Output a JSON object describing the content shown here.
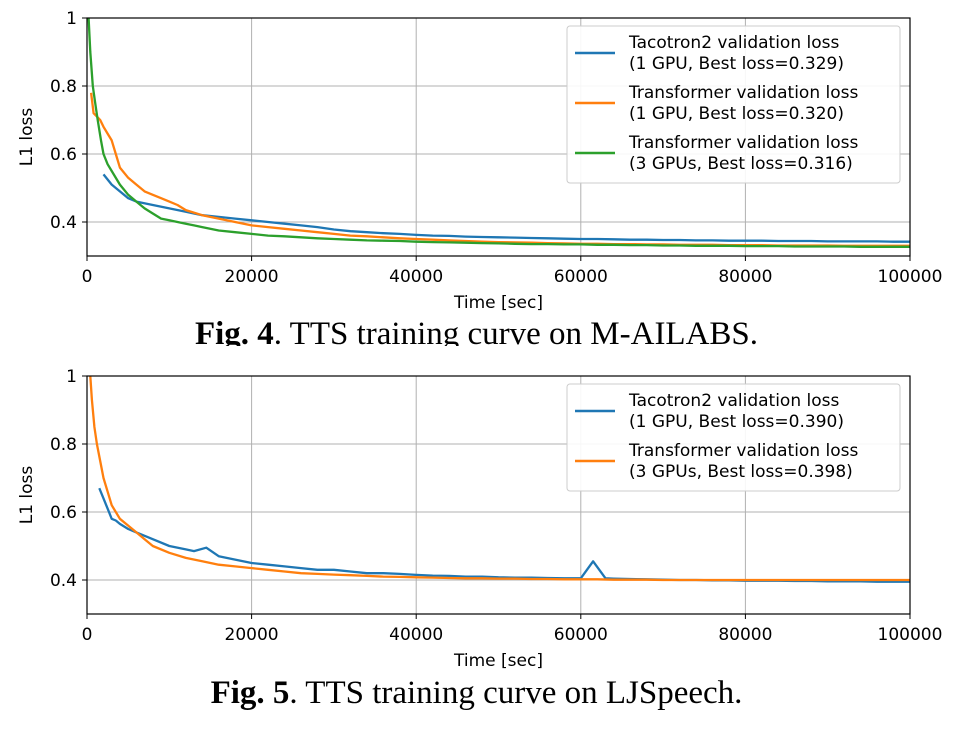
{
  "chart_data": [
    {
      "type": "line",
      "caption_label": "Fig. 4",
      "caption_text": ". TTS training curve on M-AILABS.",
      "xlabel": "Time [sec]",
      "ylabel": "L1 loss",
      "xlim": [
        0,
        100000
      ],
      "ylim": [
        0.3,
        1.0
      ],
      "xticks": [
        0,
        20000,
        40000,
        60000,
        80000,
        100000
      ],
      "yticks": [
        0.4,
        0.6,
        0.8,
        1.0
      ],
      "grid": true,
      "legend_position": "top-right",
      "series": [
        {
          "name": "Tacotron2 validation loss",
          "name_line2": "(1 GPU, Best loss=0.329)",
          "color": "#1f77b4",
          "x": [
            2000,
            3000,
            4000,
            5000,
            6000,
            8000,
            10000,
            12000,
            14000,
            16000,
            18000,
            20000,
            22000,
            24000,
            26000,
            28000,
            30000,
            32000,
            34000,
            36000,
            38000,
            40000,
            42000,
            44000,
            46000,
            48000,
            50000,
            52000,
            54000,
            56000,
            58000,
            60000,
            62000,
            64000,
            66000,
            68000,
            70000,
            72000,
            74000,
            76000,
            78000,
            80000,
            82000,
            84000,
            86000,
            88000,
            90000,
            92000,
            94000,
            96000,
            98000,
            100000
          ],
          "y": [
            0.54,
            0.51,
            0.49,
            0.47,
            0.46,
            0.45,
            0.44,
            0.43,
            0.42,
            0.415,
            0.41,
            0.405,
            0.4,
            0.395,
            0.39,
            0.385,
            0.378,
            0.373,
            0.37,
            0.367,
            0.365,
            0.362,
            0.36,
            0.359,
            0.357,
            0.356,
            0.355,
            0.354,
            0.353,
            0.352,
            0.351,
            0.35,
            0.35,
            0.349,
            0.348,
            0.348,
            0.347,
            0.347,
            0.346,
            0.346,
            0.345,
            0.345,
            0.345,
            0.344,
            0.344,
            0.344,
            0.343,
            0.343,
            0.343,
            0.343,
            0.342,
            0.342
          ]
        },
        {
          "name": "Transformer validation loss",
          "name_line2": "(1 GPU, Best loss=0.320)",
          "color": "#ff7f0e",
          "x": [
            500,
            800,
            1200,
            1600,
            2000,
            2500,
            3000,
            3500,
            4000,
            5000,
            6000,
            7000,
            8000,
            9000,
            10000,
            11000,
            12000,
            14000,
            16000,
            18000,
            20000,
            22000,
            24000,
            26000,
            28000,
            30000,
            32000,
            34000,
            36000,
            38000,
            40000,
            42000,
            44000,
            46000,
            48000,
            50000,
            52000,
            54000,
            56000,
            58000,
            60000,
            62000,
            64000,
            66000,
            68000,
            70000,
            72000,
            74000,
            76000,
            78000,
            80000,
            82000,
            84000,
            86000,
            88000,
            90000,
            92000,
            94000,
            96000,
            98000,
            100000
          ],
          "y": [
            0.78,
            0.72,
            0.71,
            0.7,
            0.68,
            0.66,
            0.64,
            0.6,
            0.56,
            0.53,
            0.51,
            0.49,
            0.48,
            0.47,
            0.46,
            0.45,
            0.435,
            0.42,
            0.41,
            0.4,
            0.39,
            0.385,
            0.38,
            0.375,
            0.37,
            0.365,
            0.36,
            0.358,
            0.355,
            0.352,
            0.35,
            0.348,
            0.346,
            0.344,
            0.342,
            0.341,
            0.34,
            0.339,
            0.338,
            0.337,
            0.336,
            0.336,
            0.335,
            0.335,
            0.334,
            0.334,
            0.333,
            0.333,
            0.333,
            0.332,
            0.332,
            0.332,
            0.331,
            0.331,
            0.331,
            0.331,
            0.33,
            0.33,
            0.33,
            0.33,
            0.33
          ]
        },
        {
          "name": "Transformer validation loss",
          "name_line2": "(3 GPUs, Best loss=0.316)",
          "color": "#2ca02c",
          "x": [
            200,
            400,
            700,
            1000,
            1300,
            1700,
            2000,
            2500,
            3000,
            4000,
            5000,
            6000,
            7000,
            8000,
            9000,
            10000,
            11000,
            12000,
            13000,
            14000,
            16000,
            18000,
            20000,
            22000,
            24000,
            26000,
            28000,
            30000,
            32000,
            34000,
            36000,
            38000,
            40000,
            42000,
            44000,
            46000,
            48000,
            50000,
            52000,
            54000,
            56000,
            58000,
            60000,
            62000,
            64000,
            66000,
            68000,
            70000,
            72000,
            74000,
            76000,
            78000,
            80000,
            82000,
            84000,
            86000,
            88000,
            90000,
            92000,
            94000,
            96000,
            98000,
            100000
          ],
          "y": [
            1.0,
            0.9,
            0.8,
            0.75,
            0.7,
            0.64,
            0.6,
            0.57,
            0.55,
            0.51,
            0.48,
            0.46,
            0.44,
            0.425,
            0.41,
            0.405,
            0.4,
            0.395,
            0.39,
            0.385,
            0.375,
            0.37,
            0.365,
            0.36,
            0.358,
            0.355,
            0.352,
            0.35,
            0.348,
            0.346,
            0.345,
            0.344,
            0.342,
            0.341,
            0.34,
            0.339,
            0.338,
            0.337,
            0.336,
            0.335,
            0.335,
            0.334,
            0.334,
            0.333,
            0.333,
            0.332,
            0.332,
            0.331,
            0.331,
            0.33,
            0.33,
            0.33,
            0.329,
            0.329,
            0.329,
            0.328,
            0.328,
            0.328,
            0.328,
            0.327,
            0.327,
            0.327,
            0.327
          ]
        }
      ]
    },
    {
      "type": "line",
      "caption_label": "Fig. 5",
      "caption_text": ". TTS training curve on LJSpeech.",
      "xlabel": "Time [sec]",
      "ylabel": "L1 loss",
      "xlim": [
        0,
        100000
      ],
      "ylim": [
        0.3,
        1.0
      ],
      "xticks": [
        0,
        20000,
        40000,
        60000,
        80000,
        100000
      ],
      "yticks": [
        0.4,
        0.6,
        0.8,
        1.0
      ],
      "grid": true,
      "legend_position": "top-right",
      "series": [
        {
          "name": "Tacotron2 validation loss",
          "name_line2": "(1 GPU, Best loss=0.390)",
          "color": "#1f77b4",
          "x": [
            1500,
            2000,
            2500,
            3000,
            3500,
            4000,
            5000,
            6000,
            8000,
            10000,
            12000,
            13000,
            14500,
            16000,
            18000,
            20000,
            22000,
            24000,
            26000,
            28000,
            30000,
            32000,
            34000,
            36000,
            38000,
            40000,
            42000,
            44000,
            46000,
            48000,
            50000,
            52000,
            54000,
            56000,
            58000,
            60000,
            61500,
            63000,
            64000,
            66000,
            68000,
            70000,
            72000,
            74000,
            76000,
            78000,
            80000,
            82000,
            84000,
            86000,
            88000,
            90000,
            92000,
            94000,
            96000,
            98000,
            100000
          ],
          "y": [
            0.67,
            0.64,
            0.61,
            0.58,
            0.575,
            0.565,
            0.55,
            0.54,
            0.52,
            0.5,
            0.49,
            0.485,
            0.495,
            0.47,
            0.46,
            0.45,
            0.445,
            0.44,
            0.435,
            0.43,
            0.43,
            0.425,
            0.42,
            0.42,
            0.418,
            0.415,
            0.413,
            0.412,
            0.41,
            0.41,
            0.408,
            0.407,
            0.407,
            0.406,
            0.405,
            0.405,
            0.455,
            0.405,
            0.404,
            0.403,
            0.402,
            0.401,
            0.4,
            0.4,
            0.399,
            0.399,
            0.398,
            0.398,
            0.398,
            0.397,
            0.397,
            0.396,
            0.396,
            0.396,
            0.395,
            0.395,
            0.395
          ]
        },
        {
          "name": "Transformer validation loss",
          "name_line2": "(3 GPUs, Best loss=0.398)",
          "color": "#ff7f0e",
          "x": [
            400,
            600,
            900,
            1200,
            1600,
            2000,
            2500,
            3000,
            3500,
            4000,
            5000,
            6000,
            7000,
            8000,
            10000,
            12000,
            14000,
            16000,
            18000,
            20000,
            22000,
            24000,
            26000,
            28000,
            30000,
            32000,
            34000,
            36000,
            38000,
            40000,
            42000,
            44000,
            46000,
            48000,
            50000,
            52000,
            54000,
            56000,
            58000,
            60000,
            62000,
            64000,
            66000,
            68000,
            70000,
            72000,
            74000,
            76000,
            78000,
            80000,
            82000,
            84000,
            86000,
            88000,
            90000,
            92000,
            94000,
            96000,
            98000,
            100000
          ],
          "y": [
            1.0,
            0.93,
            0.85,
            0.8,
            0.75,
            0.7,
            0.66,
            0.62,
            0.6,
            0.58,
            0.56,
            0.54,
            0.52,
            0.5,
            0.48,
            0.465,
            0.455,
            0.445,
            0.44,
            0.435,
            0.43,
            0.425,
            0.42,
            0.418,
            0.416,
            0.414,
            0.412,
            0.41,
            0.409,
            0.408,
            0.407,
            0.406,
            0.405,
            0.405,
            0.404,
            0.404,
            0.403,
            0.403,
            0.402,
            0.402,
            0.402,
            0.401,
            0.401,
            0.401,
            0.4,
            0.4,
            0.4,
            0.4,
            0.4,
            0.4,
            0.4,
            0.4,
            0.4,
            0.4,
            0.4,
            0.4,
            0.4,
            0.4,
            0.4,
            0.4
          ]
        }
      ]
    }
  ]
}
